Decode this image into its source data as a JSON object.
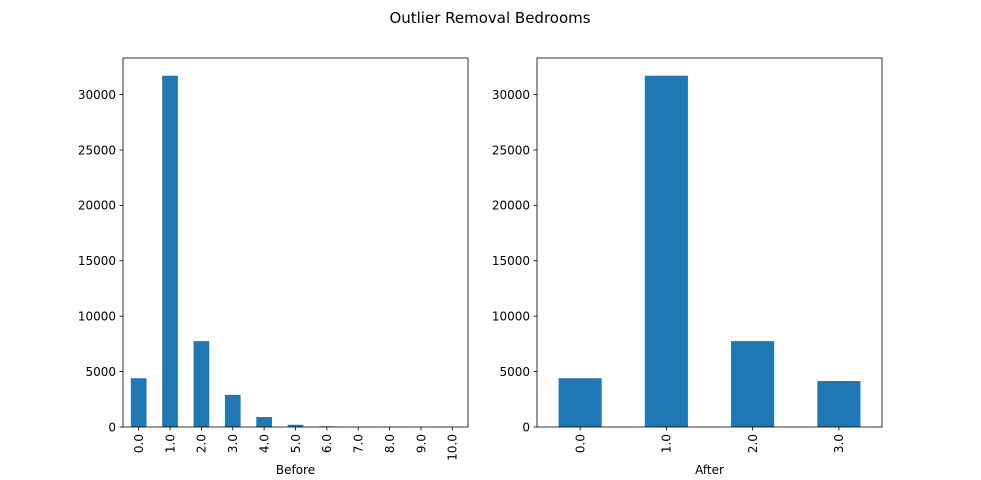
{
  "figure": {
    "title": "Outlier Removal Bedrooms",
    "bar_color": "#1f77b4"
  },
  "chart_data": [
    {
      "type": "bar",
      "categories": [
        "0.0",
        "1.0",
        "2.0",
        "3.0",
        "4.0",
        "5.0",
        "6.0",
        "7.0",
        "8.0",
        "9.0",
        "10.0"
      ],
      "values": [
        4400,
        31700,
        7750,
        2900,
        900,
        200,
        60,
        15,
        8,
        5,
        3
      ],
      "title": "",
      "xlabel": "Before",
      "ylabel": "",
      "ylim": [
        0,
        33300
      ],
      "yticks": [
        0,
        5000,
        10000,
        15000,
        20000,
        25000,
        30000
      ],
      "grid": false
    },
    {
      "type": "bar",
      "categories": [
        "0.0",
        "1.0",
        "2.0",
        "3.0"
      ],
      "values": [
        4400,
        31700,
        7750,
        4150
      ],
      "title": "",
      "xlabel": "After",
      "ylabel": "",
      "ylim": [
        0,
        33300
      ],
      "yticks": [
        0,
        5000,
        10000,
        15000,
        20000,
        25000,
        30000
      ],
      "grid": false
    }
  ]
}
